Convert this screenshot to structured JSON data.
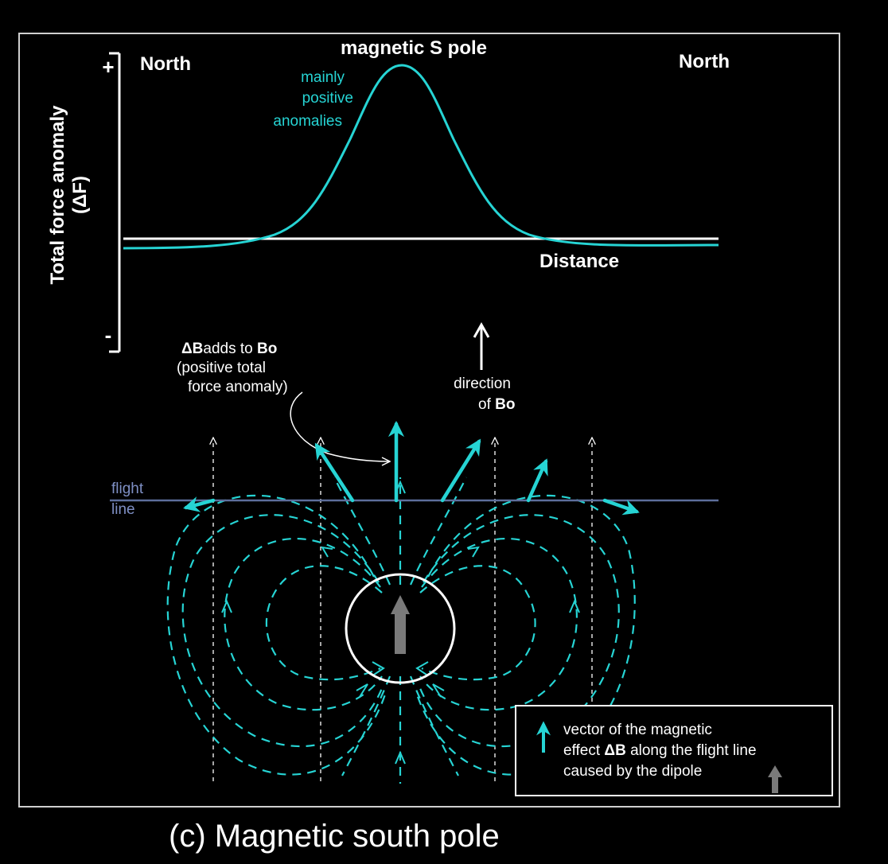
{
  "labels": {
    "north_left": "North",
    "north_right": "North",
    "pole_title": "magnetic S pole",
    "anomaly_line1": "mainly",
    "anomaly_line2": "positive",
    "anomaly_line3": "anomalies",
    "y_axis_line1": "Total force anomaly",
    "y_axis_line2": "(ΔF)",
    "plus_sign": "+",
    "minus_sign": "-",
    "distance": "Distance",
    "db_adds_a": "ΔB",
    "db_adds_b": "adds to ",
    "db_adds_c": "Bo",
    "db_adds_line2": "(positive total",
    "db_adds_line3": "force anomaly)",
    "direction_line1": "direction",
    "direction_line2a": "of ",
    "direction_line2b": "Bo",
    "flight_line1": "flight",
    "flight_line2": "line",
    "legend_line1": "vector of the magnetic",
    "legend_line2a": "effect ",
    "legend_line2b": "ΔB",
    "legend_line2c": " along the flight line",
    "legend_line3": "caused by the dipole",
    "caption": "(c) Magnetic south pole"
  },
  "colors": {
    "background": "#000000",
    "cyan": "#26d4d4",
    "white": "#ffffff",
    "flight_line": "#5d6e9c",
    "dipole_arrow": "#7a7a7a",
    "frame": "#cfcfcf"
  },
  "icons": {
    "dipole_arrow": "gray-up-arrow",
    "bo_arrow": "white-up-arrow",
    "legend_vector": "cyan-up-arrow"
  }
}
